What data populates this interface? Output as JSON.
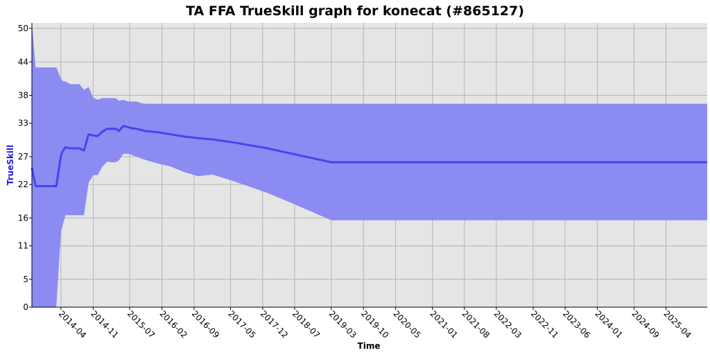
{
  "chart_data": {
    "type": "area",
    "title": "TA FFA TrueSkill graph for konecat (#865127)",
    "xlabel": "Time",
    "ylabel": "TrueSkill",
    "ylim": [
      0,
      51
    ],
    "y_ticks": [
      0,
      5,
      11,
      16,
      22,
      27,
      33,
      38,
      44,
      50
    ],
    "x_ticks": [
      "2014-04",
      "2014-11",
      "2015-07",
      "2016-02",
      "2016-09",
      "2017-05",
      "2017-12",
      "2018-07",
      "2019-03",
      "2019-10",
      "2020-05",
      "2021-01",
      "2021-08",
      "2022-03",
      "2022-11",
      "2023-06",
      "2024-01",
      "2024-09",
      "2025-04"
    ],
    "grid": true,
    "colors": {
      "band": "#8b8bf2",
      "line": "#4545f0",
      "plot_bg": "#e5e5e5",
      "grid": "#b4b4b4",
      "ylabel": "#2222dd"
    },
    "series": [
      {
        "name": "",
        "role": "upper",
        "x": [
          "2013-09-20",
          "2013-10-15",
          "2013-12-01",
          "2014-01-20",
          "2014-02-15",
          "2014-03-01",
          "2014-04-01",
          "2014-04-15",
          "2014-05-01",
          "2014-06-01",
          "2014-07-01",
          "2014-08-01",
          "2014-09-01",
          "2014-10-01",
          "2014-11-01",
          "2014-12-01",
          "2015-01-01",
          "2015-02-01",
          "2015-03-01",
          "2015-04-01",
          "2015-04-20",
          "2015-05-20",
          "2015-06-20",
          "2015-07-15",
          "2015-08-15",
          "2015-09-15",
          "2015-10-15",
          "2019-03-01",
          "2025-12-31"
        ],
        "values": [
          51,
          43,
          43,
          43,
          43,
          43,
          41,
          40.5,
          40.5,
          40,
          40,
          40,
          39,
          39.5,
          37.6,
          37.2,
          37.5,
          37.5,
          37.5,
          37.5,
          37,
          37.2,
          36.9,
          36.9,
          36.9,
          36.6,
          36.5,
          36.5,
          36.5
        ]
      },
      {
        "name": "",
        "role": "mean",
        "x": [
          "2013-09-20",
          "2013-10-15",
          "2013-12-01",
          "2014-01-20",
          "2014-02-15",
          "2014-03-01",
          "2014-04-01",
          "2014-04-15",
          "2014-05-01",
          "2014-06-01",
          "2014-07-01",
          "2014-08-01",
          "2014-09-01",
          "2014-10-01",
          "2014-11-01",
          "2014-12-01",
          "2015-01-01",
          "2015-02-01",
          "2015-03-01",
          "2015-04-01",
          "2015-04-20",
          "2015-05-20",
          "2015-06-20",
          "2015-07-15",
          "2015-08-15",
          "2015-09-15",
          "2015-10-15",
          "2016-01-01",
          "2016-04-01",
          "2016-07-01",
          "2016-10-01",
          "2017-01-01",
          "2017-06-01",
          "2018-01-01",
          "2018-06-01",
          "2019-03-01",
          "2025-12-31"
        ],
        "values": [
          25,
          21.7,
          21.7,
          21.7,
          21.7,
          21.7,
          27.2,
          28.1,
          28.7,
          28.5,
          28.5,
          28.5,
          28.1,
          31,
          30.8,
          30.7,
          31.5,
          32,
          32,
          32,
          31.6,
          32.5,
          32.3,
          32.1,
          32,
          31.8,
          31.6,
          31.4,
          31,
          30.6,
          30.3,
          30.1,
          29.5,
          28.5,
          27.6,
          26,
          26
        ]
      },
      {
        "name": "",
        "role": "lower",
        "x": [
          "2013-09-20",
          "2013-10-15",
          "2013-12-01",
          "2014-01-20",
          "2014-02-15",
          "2014-03-01",
          "2014-04-01",
          "2014-04-15",
          "2014-05-01",
          "2014-06-01",
          "2014-07-01",
          "2014-08-01",
          "2014-09-01",
          "2014-10-01",
          "2014-11-01",
          "2014-12-01",
          "2015-01-01",
          "2015-02-01",
          "2015-03-01",
          "2015-04-01",
          "2015-04-20",
          "2015-05-20",
          "2015-06-20",
          "2015-07-15",
          "2015-08-15",
          "2015-09-15",
          "2015-10-15",
          "2016-01-01",
          "2016-04-01",
          "2016-07-01",
          "2016-10-01",
          "2017-01-01",
          "2017-06-01",
          "2018-01-01",
          "2018-06-01",
          "2019-03-01",
          "2025-12-31"
        ],
        "values": [
          -1,
          -1,
          -1,
          -1,
          -1,
          -1,
          13.5,
          15,
          16.5,
          16.5,
          16.5,
          16.5,
          16.5,
          22.3,
          23.7,
          23.7,
          25.2,
          26.1,
          26,
          26,
          26.3,
          27.5,
          27.5,
          27.3,
          27,
          26.7,
          26.4,
          25.8,
          25.2,
          24.2,
          23.5,
          23.8,
          22.5,
          20.5,
          18.8,
          15.6,
          15.6
        ]
      }
    ]
  }
}
